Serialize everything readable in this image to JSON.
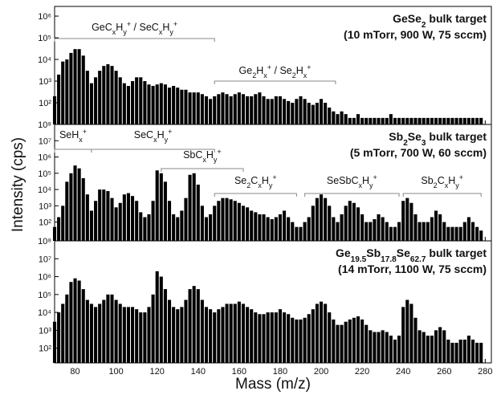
{
  "chart_data": [
    {
      "type": "bar",
      "scale": "log",
      "color": "#000000",
      "title": [
        {
          "text": "GeSe"
        },
        {
          "text": "2",
          "pos": "sub"
        },
        {
          "text": " bulk target"
        }
      ],
      "subtitle": "(10 mTorr, 900 W, 75 sccm)",
      "xlim": [
        70,
        283
      ],
      "ylim": [
        10,
        2800000
      ],
      "yticks": [
        {
          "value": 100,
          "label": "10²"
        },
        {
          "value": 1000,
          "label": "10³"
        },
        {
          "value": 10000,
          "label": "10⁴"
        },
        {
          "value": 100000,
          "label": "10⁵"
        },
        {
          "value": 1000000,
          "label": "10⁶"
        }
      ],
      "annotations": [
        {
          "label": [
            {
              "text": "GeC"
            },
            {
              "text": "x",
              "pos": "sub"
            },
            {
              "text": "H"
            },
            {
              "text": "y",
              "pos": "sub"
            },
            {
              "text": "+",
              "pos": "sup"
            },
            {
              "text": " / SeC"
            },
            {
              "text": "x",
              "pos": "sub"
            },
            {
              "text": "H"
            },
            {
              "text": "y",
              "pos": "sub"
            },
            {
              "text": "+",
              "pos": "sup"
            }
          ],
          "range": [
            70,
            148
          ]
        },
        {
          "label": [
            {
              "text": "Ge"
            },
            {
              "text": "2",
              "pos": "sub"
            },
            {
              "text": "H"
            },
            {
              "text": "x",
              "pos": "sub"
            },
            {
              "text": "+",
              "pos": "sup"
            },
            {
              "text": " / Se"
            },
            {
              "text": "2",
              "pos": "sub"
            },
            {
              "text": "H"
            },
            {
              "text": "x",
              "pos": "sub"
            },
            {
              "text": "+",
              "pos": "sup"
            }
          ],
          "range": [
            148,
            207
          ]
        }
      ],
      "x": [
        70,
        72,
        74,
        76,
        78,
        80,
        82,
        84,
        86,
        88,
        90,
        92,
        94,
        96,
        98,
        100,
        102,
        104,
        106,
        108,
        110,
        112,
        114,
        116,
        118,
        120,
        122,
        124,
        126,
        128,
        130,
        132,
        134,
        136,
        138,
        140,
        142,
        144,
        146,
        148,
        150,
        152,
        154,
        156,
        158,
        160,
        162,
        164,
        166,
        168,
        170,
        172,
        174,
        176,
        178,
        180,
        182,
        184,
        186,
        188,
        190,
        192,
        194,
        196,
        198,
        200,
        202,
        204,
        206,
        208,
        210,
        212,
        214,
        216,
        218,
        220,
        222,
        224,
        226,
        228,
        230,
        232,
        234,
        236,
        238,
        240,
        242,
        244,
        246,
        248,
        250,
        252,
        254,
        256,
        258,
        260,
        262,
        264,
        266,
        268,
        270,
        272,
        274,
        276,
        278
      ],
      "values": [
        200,
        2000,
        8000,
        10000,
        20000,
        30000,
        30000,
        15000,
        3000,
        800,
        1500,
        3000,
        5000,
        6000,
        5000,
        3000,
        1500,
        800,
        600,
        1000,
        1500,
        1500,
        1000,
        700,
        600,
        700,
        800,
        700,
        500,
        600,
        500,
        400,
        400,
        300,
        300,
        300,
        250,
        200,
        150,
        200,
        250,
        300,
        250,
        200,
        250,
        300,
        250,
        200,
        200,
        250,
        300,
        200,
        150,
        150,
        200,
        200,
        150,
        120,
        100,
        150,
        200,
        150,
        100,
        80,
        100,
        150,
        100,
        60,
        40,
        30,
        40,
        30,
        20,
        20,
        30,
        20,
        20,
        20,
        20,
        20,
        20,
        20,
        30,
        20,
        20,
        20,
        20,
        20,
        20,
        20,
        20,
        20,
        20,
        20,
        20,
        20,
        20,
        20,
        20,
        20,
        20,
        20,
        20,
        20,
        20
      ]
    },
    {
      "type": "bar",
      "scale": "log",
      "color": "#000000",
      "title": [
        {
          "text": "Sb"
        },
        {
          "text": "2",
          "pos": "sub"
        },
        {
          "text": "Se"
        },
        {
          "text": "3",
          "pos": "sub"
        },
        {
          "text": " bulk target"
        }
      ],
      "subtitle": "(5 mTorr, 700 W, 60 sccm)",
      "ylabel": "Intensity (cps)",
      "xlim": [
        70,
        283
      ],
      "ylim": [
        7,
        100000000
      ],
      "yticks": [
        {
          "value": 100,
          "label": "10²"
        },
        {
          "value": 1000,
          "label": "10³"
        },
        {
          "value": 10000,
          "label": "10⁴"
        },
        {
          "value": 100000,
          "label": "10⁵"
        },
        {
          "value": 1000000,
          "label": "10⁶"
        },
        {
          "value": 10000000,
          "label": "10⁷"
        },
        {
          "value": 100000000,
          "label": "10⁸"
        }
      ],
      "annotations": [
        {
          "label": [
            {
              "text": "SeH"
            },
            {
              "text": "x",
              "pos": "sub"
            },
            {
              "text": "+",
              "pos": "sup"
            }
          ],
          "range": [
            70,
            88
          ]
        },
        {
          "label": [
            {
              "text": "SeC"
            },
            {
              "text": "x",
              "pos": "sub"
            },
            {
              "text": "H"
            },
            {
              "text": "y",
              "pos": "sub"
            },
            {
              "text": "+",
              "pos": "sup"
            }
          ],
          "range": [
            88,
            148
          ]
        },
        {
          "label": [
            {
              "text": "SbC"
            },
            {
              "text": "x",
              "pos": "sub"
            },
            {
              "text": "H"
            },
            {
              "text": "y",
              "pos": "sub"
            },
            {
              "text": "+",
              "pos": "sup"
            }
          ],
          "range": [
            122,
            162
          ]
        },
        {
          "label": [
            {
              "text": "Se"
            },
            {
              "text": "2",
              "pos": "sub"
            },
            {
              "text": "C"
            },
            {
              "text": "x",
              "pos": "sub"
            },
            {
              "text": "H"
            },
            {
              "text": "y",
              "pos": "sub"
            },
            {
              "text": "+",
              "pos": "sup"
            }
          ],
          "range": [
            148,
            188
          ]
        },
        {
          "label": [
            {
              "text": "SeSbC"
            },
            {
              "text": "x",
              "pos": "sub"
            },
            {
              "text": "H"
            },
            {
              "text": "y",
              "pos": "sub"
            },
            {
              "text": "+",
              "pos": "sup"
            }
          ],
          "range": [
            192,
            238
          ]
        },
        {
          "label": [
            {
              "text": "Sb"
            },
            {
              "text": "2",
              "pos": "sub"
            },
            {
              "text": "C"
            },
            {
              "text": "x",
              "pos": "sub"
            },
            {
              "text": "H"
            },
            {
              "text": "y",
              "pos": "sub"
            },
            {
              "text": "+",
              "pos": "sup"
            }
          ],
          "range": [
            240,
            278
          ]
        }
      ],
      "x": [
        70,
        72,
        74,
        76,
        78,
        80,
        82,
        84,
        86,
        88,
        90,
        92,
        94,
        96,
        98,
        100,
        102,
        104,
        106,
        108,
        110,
        112,
        114,
        116,
        118,
        120,
        122,
        124,
        126,
        128,
        130,
        132,
        134,
        136,
        138,
        140,
        142,
        144,
        146,
        148,
        150,
        152,
        154,
        156,
        158,
        160,
        162,
        164,
        166,
        168,
        170,
        172,
        174,
        176,
        178,
        180,
        182,
        184,
        186,
        188,
        190,
        192,
        194,
        196,
        198,
        200,
        202,
        204,
        206,
        208,
        210,
        212,
        214,
        216,
        218,
        220,
        222,
        224,
        226,
        228,
        230,
        232,
        234,
        236,
        238,
        240,
        242,
        244,
        246,
        248,
        250,
        252,
        254,
        256,
        258,
        260,
        262,
        264,
        266,
        268,
        270,
        272,
        274,
        276,
        278
      ],
      "values": [
        50,
        200,
        1000,
        30000,
        100000,
        300000,
        200000,
        50000,
        5000,
        500,
        2000,
        10000,
        10000,
        8000,
        3000,
        800,
        1500,
        5000,
        6000,
        4000,
        2000,
        400,
        200,
        300,
        2000,
        150000,
        100000,
        30000,
        2000,
        300,
        200,
        500,
        3000,
        80000,
        100000,
        20000,
        1000,
        200,
        300,
        1000,
        2000,
        3000,
        3000,
        2500,
        2000,
        1500,
        1000,
        800,
        500,
        400,
        300,
        300,
        200,
        150,
        200,
        300,
        500,
        200,
        100,
        50,
        50,
        100,
        200,
        1000,
        3000,
        5000,
        3000,
        1000,
        200,
        100,
        300,
        1000,
        2000,
        1500,
        800,
        300,
        100,
        100,
        150,
        300,
        200,
        100,
        50,
        50,
        100,
        2000,
        3000,
        1500,
        300,
        100,
        100,
        100,
        200,
        500,
        300,
        100,
        50,
        50,
        50,
        50,
        100,
        200,
        100,
        50,
        30
      ]
    },
    {
      "type": "bar",
      "scale": "log",
      "color": "#000000",
      "title": [
        {
          "text": "Ge"
        },
        {
          "text": "19.5",
          "pos": "sub"
        },
        {
          "text": "Sb"
        },
        {
          "text": "17.8",
          "pos": "sub"
        },
        {
          "text": "Se"
        },
        {
          "text": "62.7",
          "pos": "sub"
        },
        {
          "text": " bulk target"
        }
      ],
      "subtitle": "(14 mTorr, 1100 W, 75 sccm)",
      "xlabel": "Mass (m/z)",
      "xlim": [
        70,
        283
      ],
      "ylim": [
        15,
        100000000
      ],
      "xticks": [
        80,
        100,
        120,
        140,
        160,
        180,
        200,
        220,
        240,
        260,
        280
      ],
      "yticks": [
        {
          "value": 100,
          "label": "10²"
        },
        {
          "value": 1000,
          "label": "10³"
        },
        {
          "value": 10000,
          "label": "10⁴"
        },
        {
          "value": 100000,
          "label": "10⁵"
        },
        {
          "value": 1000000,
          "label": "10⁶"
        },
        {
          "value": 10000000,
          "label": "10⁷"
        },
        {
          "value": 100000000,
          "label": "10⁸"
        }
      ],
      "x": [
        70,
        72,
        74,
        76,
        78,
        80,
        82,
        84,
        86,
        88,
        90,
        92,
        94,
        96,
        98,
        100,
        102,
        104,
        106,
        108,
        110,
        112,
        114,
        116,
        118,
        120,
        122,
        124,
        126,
        128,
        130,
        132,
        134,
        136,
        138,
        140,
        142,
        144,
        146,
        148,
        150,
        152,
        154,
        156,
        158,
        160,
        162,
        164,
        166,
        168,
        170,
        172,
        174,
        176,
        178,
        180,
        182,
        184,
        186,
        188,
        190,
        192,
        194,
        196,
        198,
        200,
        202,
        204,
        206,
        208,
        210,
        212,
        214,
        216,
        218,
        220,
        222,
        224,
        226,
        228,
        230,
        232,
        234,
        236,
        238,
        240,
        242,
        244,
        246,
        248,
        250,
        252,
        254,
        256,
        258,
        260,
        262,
        264,
        266,
        268,
        270,
        272,
        274,
        276,
        278
      ],
      "values": [
        3000,
        10000,
        30000,
        100000,
        500000,
        800000,
        600000,
        200000,
        50000,
        30000,
        20000,
        30000,
        50000,
        100000,
        100000,
        50000,
        30000,
        20000,
        20000,
        20000,
        15000,
        10000,
        10000,
        20000,
        100000,
        2000000,
        1000000,
        200000,
        50000,
        20000,
        15000,
        20000,
        50000,
        200000,
        300000,
        200000,
        50000,
        20000,
        15000,
        10000,
        15000,
        20000,
        30000,
        30000,
        30000,
        40000,
        30000,
        20000,
        15000,
        10000,
        8000,
        8000,
        10000,
        10000,
        10000,
        15000,
        10000,
        8000,
        5000,
        4000,
        4000,
        5000,
        8000,
        15000,
        30000,
        40000,
        30000,
        10000,
        4000,
        2000,
        2000,
        3000,
        4000,
        5000,
        6000,
        4000,
        2000,
        1000,
        800,
        800,
        1000,
        800,
        500,
        300,
        500,
        20000,
        50000,
        30000,
        5000,
        1000,
        800,
        500,
        500,
        1000,
        1500,
        1000,
        300,
        200,
        200,
        300,
        300,
        500,
        300,
        200,
        200
      ]
    }
  ]
}
